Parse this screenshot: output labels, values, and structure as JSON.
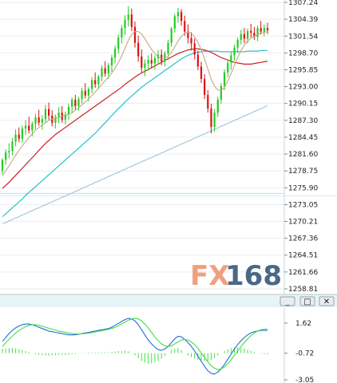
{
  "colors": {
    "bull": "#22cc22",
    "bear": "#dd1111",
    "ma_short": "#c8a882",
    "ma_mid": "#cc2222",
    "ma_long": "#26c0c8",
    "ma_vlong": "#9ec4d8",
    "macd_dif": "#1f6fd6",
    "macd_dea": "#44dd44",
    "macd_hist": "#44dd44",
    "grid": "#eeeeee",
    "watermark_fx": "#f0a080",
    "watermark_num": "#4a6888"
  },
  "watermark": {
    "left": "FX",
    "right": "168"
  },
  "window_controls": [
    {
      "name": "minimize-button",
      "glyph": "_"
    },
    {
      "name": "restore-button",
      "glyph": "□"
    },
    {
      "name": "close-button",
      "glyph": "✕"
    }
  ],
  "chart_data": [
    {
      "type": "candlestick",
      "title": "",
      "yticks": [
        "1307.24",
        "1304.39",
        "1301.54",
        "1298.70",
        "1295.85",
        "1293.00",
        "1290.15",
        "1287.30",
        "1284.45",
        "1281.60",
        "1278.75",
        "1275.90",
        "1273.05",
        "1270.21",
        "1267.36",
        "1264.51",
        "1261.66",
        "1258.81"
      ],
      "ylim": [
        1258.81,
        1307.24
      ],
      "grid": true,
      "candles": [
        [
          1278.8,
          1280.9,
          1278.2,
          1280.6
        ],
        [
          1280.6,
          1282.4,
          1279.8,
          1281.9
        ],
        [
          1281.9,
          1283.4,
          1280.9,
          1282.1
        ],
        [
          1282.1,
          1284.3,
          1281.4,
          1283.7
        ],
        [
          1283.7,
          1285.8,
          1282.9,
          1284.9
        ],
        [
          1284.9,
          1286.1,
          1283.6,
          1284.2
        ],
        [
          1284.2,
          1286.4,
          1283.5,
          1285.9
        ],
        [
          1285.9,
          1287.3,
          1284.8,
          1286.4
        ],
        [
          1286.4,
          1287.9,
          1285.1,
          1285.6
        ],
        [
          1285.6,
          1287.1,
          1284.6,
          1286.7
        ],
        [
          1286.7,
          1288.4,
          1285.8,
          1287.8
        ],
        [
          1287.8,
          1289.1,
          1286.4,
          1286.9
        ],
        [
          1286.9,
          1288.2,
          1285.7,
          1287.5
        ],
        [
          1287.5,
          1289.9,
          1286.8,
          1289.2
        ],
        [
          1289.2,
          1290.3,
          1287.4,
          1288.1
        ],
        [
          1288.1,
          1289.0,
          1286.3,
          1286.9
        ],
        [
          1286.9,
          1288.3,
          1285.9,
          1287.9
        ],
        [
          1287.9,
          1289.5,
          1286.8,
          1288.6
        ],
        [
          1288.6,
          1289.7,
          1286.9,
          1287.4
        ],
        [
          1287.4,
          1288.8,
          1286.6,
          1288.3
        ],
        [
          1288.3,
          1290.1,
          1287.4,
          1289.6
        ],
        [
          1289.6,
          1291.2,
          1288.5,
          1290.8
        ],
        [
          1290.8,
          1291.6,
          1289.1,
          1289.7
        ],
        [
          1289.7,
          1291.3,
          1288.9,
          1290.9
        ],
        [
          1290.9,
          1292.8,
          1290.1,
          1292.3
        ],
        [
          1292.3,
          1293.6,
          1291.0,
          1291.5
        ],
        [
          1291.5,
          1292.9,
          1290.5,
          1292.6
        ],
        [
          1292.6,
          1294.6,
          1291.9,
          1294.1
        ],
        [
          1294.1,
          1295.4,
          1292.8,
          1293.4
        ],
        [
          1293.4,
          1295.0,
          1292.6,
          1294.7
        ],
        [
          1294.7,
          1296.6,
          1293.9,
          1296.1
        ],
        [
          1296.1,
          1297.3,
          1294.7,
          1295.2
        ],
        [
          1295.2,
          1297.0,
          1294.3,
          1296.6
        ],
        [
          1296.6,
          1298.4,
          1295.5,
          1297.9
        ],
        [
          1297.9,
          1299.9,
          1296.9,
          1299.4
        ],
        [
          1299.4,
          1301.8,
          1298.6,
          1301.3
        ],
        [
          1301.3,
          1303.4,
          1300.3,
          1302.9
        ],
        [
          1302.9,
          1305.1,
          1301.7,
          1304.3
        ],
        [
          1304.3,
          1306.6,
          1303.2,
          1305.2
        ],
        [
          1305.2,
          1306.2,
          1302.4,
          1303.1
        ],
        [
          1303.1,
          1304.0,
          1299.6,
          1300.4
        ],
        [
          1300.4,
          1301.6,
          1297.2,
          1298.1
        ],
        [
          1298.1,
          1299.3,
          1295.4,
          1296.2
        ],
        [
          1296.2,
          1297.6,
          1294.8,
          1296.9
        ],
        [
          1296.9,
          1298.3,
          1295.7,
          1297.5
        ],
        [
          1297.5,
          1298.6,
          1296.1,
          1296.9
        ],
        [
          1296.9,
          1298.3,
          1295.9,
          1297.8
        ],
        [
          1297.8,
          1299.2,
          1296.7,
          1298.4
        ],
        [
          1298.4,
          1299.3,
          1296.6,
          1297.3
        ],
        [
          1297.3,
          1299.0,
          1296.4,
          1298.6
        ],
        [
          1298.6,
          1300.9,
          1297.9,
          1300.4
        ],
        [
          1300.4,
          1303.1,
          1299.8,
          1302.8
        ],
        [
          1302.8,
          1305.3,
          1302.1,
          1304.9
        ],
        [
          1304.9,
          1306.3,
          1303.8,
          1305.6
        ],
        [
          1305.6,
          1306.1,
          1303.3,
          1304.1
        ],
        [
          1304.1,
          1305.0,
          1301.6,
          1302.3
        ],
        [
          1302.3,
          1303.5,
          1300.3,
          1301.2
        ],
        [
          1301.2,
          1302.2,
          1299.1,
          1300.3
        ],
        [
          1300.3,
          1301.1,
          1297.6,
          1298.4
        ],
        [
          1298.4,
          1299.1,
          1295.8,
          1296.4
        ],
        [
          1296.4,
          1297.2,
          1293.6,
          1294.3
        ],
        [
          1294.3,
          1295.1,
          1290.9,
          1291.6
        ],
        [
          1291.6,
          1292.4,
          1288.6,
          1289.3
        ],
        [
          1289.3,
          1290.1,
          1285.1,
          1286.2
        ],
        [
          1286.2,
          1289.2,
          1285.4,
          1288.6
        ],
        [
          1288.6,
          1291.3,
          1287.9,
          1290.8
        ],
        [
          1290.8,
          1293.6,
          1290.1,
          1293.1
        ],
        [
          1293.1,
          1295.9,
          1292.4,
          1295.4
        ],
        [
          1295.4,
          1297.6,
          1294.6,
          1297.0
        ],
        [
          1297.0,
          1298.8,
          1295.9,
          1298.3
        ],
        [
          1298.3,
          1300.1,
          1297.4,
          1299.6
        ],
        [
          1299.6,
          1301.3,
          1298.7,
          1300.9
        ],
        [
          1300.9,
          1302.6,
          1300.1,
          1301.9
        ],
        [
          1301.9,
          1302.9,
          1300.3,
          1301.1
        ],
        [
          1301.1,
          1302.8,
          1300.3,
          1302.4
        ],
        [
          1302.4,
          1303.6,
          1301.3,
          1302.1
        ],
        [
          1302.1,
          1303.1,
          1300.9,
          1301.4
        ],
        [
          1301.4,
          1303.3,
          1300.7,
          1302.9
        ],
        [
          1302.9,
          1304.1,
          1301.8,
          1302.3
        ],
        [
          1302.3,
          1303.5,
          1301.5,
          1302.9
        ],
        [
          1302.9,
          1303.8,
          1301.9,
          1302.5
        ]
      ],
      "ma_short": [
        1277.9,
        1278.8,
        1279.6,
        1280.5,
        1281.4,
        1282.2,
        1283.0,
        1283.7,
        1284.4,
        1285.0,
        1285.6,
        1286.1,
        1286.5,
        1286.9,
        1287.3,
        1287.5,
        1287.6,
        1287.8,
        1288.0,
        1288.1,
        1288.3,
        1288.6,
        1289.0,
        1289.4,
        1289.9,
        1290.4,
        1290.9,
        1291.5,
        1292.1,
        1292.7,
        1293.4,
        1294.0,
        1294.6,
        1295.3,
        1296.1,
        1297.1,
        1298.2,
        1299.5,
        1300.8,
        1301.8,
        1302.3,
        1302.3,
        1301.9,
        1301.1,
        1300.2,
        1299.3,
        1298.6,
        1298.1,
        1297.8,
        1297.8,
        1298.1,
        1298.8,
        1299.7,
        1300.7,
        1301.5,
        1302.0,
        1302.2,
        1302.0,
        1301.4,
        1300.5,
        1299.2,
        1297.7,
        1296.0,
        1294.3,
        1293.1,
        1292.4,
        1292.3,
        1292.9,
        1293.9,
        1295.2,
        1296.6,
        1297.9,
        1299.1,
        1300.0,
        1300.7,
        1301.2,
        1301.5,
        1301.8,
        1302.0,
        1302.2,
        1302.3
      ],
      "ma_mid": [
        1275.8,
        1276.3,
        1276.8,
        1277.4,
        1278.0,
        1278.6,
        1279.2,
        1279.8,
        1280.4,
        1281.0,
        1281.6,
        1282.2,
        1282.8,
        1283.4,
        1283.9,
        1284.4,
        1284.9,
        1285.3,
        1285.7,
        1286.1,
        1286.5,
        1286.9,
        1287.3,
        1287.7,
        1288.1,
        1288.5,
        1288.9,
        1289.3,
        1289.7,
        1290.1,
        1290.5,
        1290.9,
        1291.3,
        1291.7,
        1292.1,
        1292.5,
        1292.9,
        1293.4,
        1293.8,
        1294.2,
        1294.6,
        1295.0,
        1295.3,
        1295.6,
        1295.9,
        1296.2,
        1296.5,
        1296.8,
        1297.1,
        1297.4,
        1297.7,
        1298.0,
        1298.3,
        1298.6,
        1298.8,
        1299.0,
        1299.2,
        1299.3,
        1299.4,
        1299.4,
        1299.3,
        1299.2,
        1299.0,
        1298.8,
        1298.5,
        1298.2,
        1297.9,
        1297.7,
        1297.5,
        1297.3,
        1297.1,
        1297.0,
        1296.9,
        1296.8,
        1296.8,
        1296.8,
        1296.9,
        1297.0,
        1297.1,
        1297.2,
        1297.3
      ],
      "ma_long": [
        1271.0,
        1271.5,
        1272.0,
        1272.5,
        1273.0,
        1273.5,
        1274.0,
        1274.6,
        1275.1,
        1275.6,
        1276.1,
        1276.6,
        1277.1,
        1277.6,
        1278.1,
        1278.6,
        1279.1,
        1279.6,
        1280.1,
        1280.6,
        1281.1,
        1281.6,
        1282.1,
        1282.6,
        1283.1,
        1283.6,
        1284.1,
        1284.6,
        1285.1,
        1285.7,
        1286.3,
        1286.9,
        1287.5,
        1288.1,
        1288.7,
        1289.3,
        1289.8,
        1290.4,
        1290.9,
        1291.4,
        1291.9,
        1292.4,
        1292.9,
        1293.3,
        1293.7,
        1294.1,
        1294.5,
        1294.9,
        1295.3,
        1295.7,
        1296.1,
        1296.5,
        1296.9,
        1297.3,
        1297.7,
        1298.0,
        1298.3,
        1298.5,
        1298.7,
        1298.8,
        1298.9,
        1299.0,
        1299.0,
        1299.0,
        1299.0,
        1299.0,
        1298.9,
        1298.9,
        1298.9,
        1298.9,
        1298.9,
        1298.9,
        1298.9,
        1298.9,
        1299.0,
        1299.0,
        1299.0,
        1299.0,
        1299.1,
        1299.1,
        1299.1
      ],
      "ma_vlong": [
        1269.8,
        1270.0,
        1270.3,
        1270.5,
        1270.8,
        1271.0,
        1271.3,
        1271.5,
        1271.8,
        1272.0,
        1272.3,
        1272.5,
        1272.8,
        1273.0,
        1273.3,
        1273.5,
        1273.8,
        1274.0,
        1274.3,
        1274.5,
        1274.8,
        1275.0,
        1275.3,
        1275.5,
        1275.8,
        1276.0,
        1276.3,
        1276.5,
        1276.8,
        1277.0,
        1277.3,
        1277.5,
        1277.8,
        1278.0,
        1278.3,
        1278.5,
        1278.8,
        1279.0,
        1279.3,
        1279.5,
        1279.8,
        1280.0,
        1280.3,
        1280.5,
        1280.8,
        1281.0,
        1281.3,
        1281.5,
        1281.8,
        1282.0,
        1282.3,
        1282.5,
        1282.8,
        1283.0,
        1283.3,
        1283.5,
        1283.8,
        1284.0,
        1284.3,
        1284.5,
        1284.8,
        1285.0,
        1285.3,
        1285.5,
        1285.8,
        1286.0,
        1286.3,
        1286.5,
        1286.8,
        1287.0,
        1287.3,
        1287.5,
        1287.8,
        1288.0,
        1288.3,
        1288.5,
        1288.8,
        1289.0,
        1289.3,
        1289.5,
        1289.8
      ]
    },
    {
      "type": "line",
      "title": "",
      "yticks": [
        "1.62",
        "-0.72",
        "-3.05"
      ],
      "ylim": [
        -3.05,
        2.8
      ],
      "series": [
        {
          "name": "",
          "values": [
            0.2,
            0.5,
            0.8,
            1.05,
            1.25,
            1.4,
            1.5,
            1.55,
            1.55,
            1.5,
            1.4,
            1.3,
            1.2,
            1.1,
            1.0,
            0.95,
            0.9,
            0.85,
            0.8,
            0.75,
            0.7,
            0.7,
            0.72,
            0.75,
            0.8,
            0.85,
            0.9,
            0.95,
            1.0,
            1.05,
            1.1,
            1.15,
            1.2,
            1.3,
            1.45,
            1.6,
            1.75,
            1.9,
            2.0,
            1.95,
            1.8,
            1.5,
            1.1,
            0.7,
            0.3,
            0.0,
            -0.25,
            -0.45,
            -0.5,
            -0.4,
            -0.2,
            0.1,
            0.4,
            0.6,
            0.55,
            0.35,
            0.1,
            -0.2,
            -0.55,
            -0.95,
            -1.35,
            -1.75,
            -2.1,
            -2.3,
            -2.35,
            -2.2,
            -1.95,
            -1.6,
            -1.2,
            -0.8,
            -0.4,
            -0.05,
            0.25,
            0.5,
            0.7,
            0.85,
            0.95,
            1.0,
            1.05,
            1.05,
            1.05
          ]
        },
        {
          "name": "",
          "values": [
            -0.2,
            0.1,
            0.35,
            0.6,
            0.85,
            1.05,
            1.2,
            1.35,
            1.45,
            1.5,
            1.5,
            1.45,
            1.38,
            1.3,
            1.22,
            1.15,
            1.08,
            1.0,
            0.95,
            0.9,
            0.85,
            0.8,
            0.78,
            0.77,
            0.78,
            0.8,
            0.84,
            0.88,
            0.93,
            0.98,
            1.03,
            1.08,
            1.13,
            1.2,
            1.3,
            1.42,
            1.56,
            1.7,
            1.85,
            1.95,
            2.0,
            1.95,
            1.8,
            1.55,
            1.25,
            0.9,
            0.55,
            0.25,
            0.0,
            -0.15,
            -0.2,
            -0.15,
            0.0,
            0.15,
            0.3,
            0.35,
            0.3,
            0.15,
            -0.05,
            -0.35,
            -0.7,
            -1.05,
            -1.4,
            -1.7,
            -1.9,
            -2.0,
            -1.95,
            -1.8,
            -1.55,
            -1.25,
            -0.9,
            -0.55,
            -0.2,
            0.1,
            0.4,
            0.65,
            0.85,
            1.0,
            1.1,
            1.15,
            1.15
          ]
        }
      ],
      "histogram": [
        0.4,
        0.4,
        0.45,
        0.45,
        0.4,
        0.35,
        0.3,
        0.2,
        0.1,
        0.0,
        -0.1,
        -0.15,
        -0.18,
        -0.2,
        -0.22,
        -0.2,
        -0.18,
        -0.15,
        -0.15,
        -0.15,
        -0.15,
        -0.1,
        -0.06,
        -0.02,
        0.02,
        0.05,
        0.06,
        0.07,
        0.07,
        0.07,
        0.07,
        0.07,
        0.07,
        0.1,
        0.15,
        0.18,
        0.19,
        0.2,
        0.15,
        0.0,
        -0.2,
        -0.45,
        -0.7,
        -0.85,
        -0.95,
        -0.9,
        -0.8,
        -0.7,
        -0.5,
        -0.25,
        0.0,
        0.25,
        0.4,
        0.45,
        0.25,
        0.0,
        -0.2,
        -0.35,
        -0.5,
        -0.6,
        -0.65,
        -0.7,
        -0.7,
        -0.6,
        -0.45,
        -0.2,
        0.0,
        0.2,
        0.35,
        0.45,
        0.5,
        0.5,
        0.45,
        0.4,
        0.3,
        0.2,
        0.1,
        0.0,
        -0.05,
        -0.1,
        -0.1
      ]
    }
  ]
}
